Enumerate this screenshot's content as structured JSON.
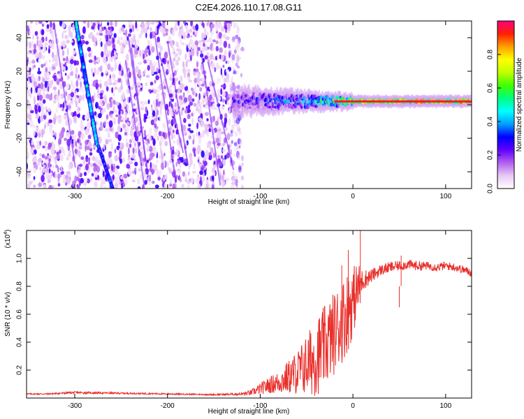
{
  "title": "C2E4.2026.110.17.08.G11",
  "chart_data": [
    {
      "type": "heatmap",
      "name": "spectrogram",
      "xlabel": "Height of straight line (km)",
      "ylabel": "Frequency (Hz)",
      "xlim": [
        -352,
        128
      ],
      "ylim": [
        -50,
        50
      ],
      "xticks": [
        -300,
        -200,
        -100,
        0,
        100
      ],
      "yticks": [
        -40,
        -20,
        0,
        20,
        40
      ],
      "colorbar": {
        "label": "Normalized spectral amplitude",
        "range": [
          0,
          1
        ],
        "ticks": [
          0.0,
          0.2,
          0.4,
          0.6,
          0.8
        ],
        "colors": [
          "#ffffff",
          "#e8c8f4",
          "#b060f0",
          "#6000ff",
          "#0000ff",
          "#00a0ff",
          "#00ffff",
          "#00ff80",
          "#40ff00",
          "#c0ff00",
          "#ffff00",
          "#ffa000",
          "#ff2000",
          "#ff0080"
        ]
      },
      "features": [
        {
          "name": "noise field",
          "x_range": [
            -352,
            -125
          ],
          "y_range": [
            -50,
            50
          ],
          "amplitude": 0.15
        },
        {
          "name": "streak A",
          "from": [
            -299,
            50
          ],
          "to": [
            -276,
            -24
          ],
          "amplitude": 0.5
        },
        {
          "name": "streak A lower",
          "from": [
            -275,
            -24
          ],
          "to": [
            -259,
            -50
          ],
          "amplitude": 0.35
        },
        {
          "name": "signal band",
          "x_range": [
            -130,
            128
          ],
          "center_hz": 2,
          "amplitude_trend": [
            [
              -130,
              0.3
            ],
            [
              -60,
              0.45
            ],
            [
              -20,
              0.7
            ],
            [
              10,
              0.85
            ],
            [
              128,
              0.92
            ]
          ]
        }
      ]
    },
    {
      "type": "line",
      "name": "snr",
      "xlabel": "Height of straight line (km)",
      "ylabel": "SNR (10 * v/v)",
      "y_multiplier": "(x10",
      "y_multiplier_exp": "4",
      "y_multiplier_close": ")",
      "xlim": [
        -352,
        128
      ],
      "ylim": [
        0,
        1.2
      ],
      "xticks": [
        -300,
        -200,
        -100,
        0,
        100
      ],
      "yticks": [
        0.2,
        0.4,
        0.6,
        0.8,
        1.0
      ],
      "color": "#e8302c",
      "series": [
        {
          "name": "SNR",
          "x": [
            -352,
            -330,
            -300,
            -250,
            -200,
            -150,
            -120,
            -110,
            -100,
            -90,
            -80,
            -70,
            -60,
            -50,
            -40,
            -30,
            -20,
            -15,
            -10,
            -5,
            0,
            5,
            10,
            20,
            30,
            40,
            50,
            60,
            70,
            80,
            90,
            100,
            110,
            120,
            128
          ],
          "y": [
            0.03,
            0.03,
            0.04,
            0.035,
            0.03,
            0.025,
            0.03,
            0.04,
            0.07,
            0.1,
            0.12,
            0.16,
            0.2,
            0.26,
            0.32,
            0.4,
            0.5,
            0.55,
            0.6,
            0.66,
            0.72,
            0.8,
            0.85,
            0.88,
            0.92,
            0.94,
            0.95,
            0.96,
            0.95,
            0.95,
            0.94,
            0.95,
            0.94,
            0.92,
            0.9
          ],
          "spread": [
            0.005,
            0.005,
            0.008,
            0.006,
            0.005,
            0.005,
            0.01,
            0.02,
            0.04,
            0.06,
            0.08,
            0.12,
            0.16,
            0.22,
            0.28,
            0.3,
            0.3,
            0.3,
            0.3,
            0.3,
            0.25,
            0.2,
            0.08,
            0.05,
            0.04,
            0.04,
            0.035,
            0.035,
            0.035,
            0.03,
            0.03,
            0.03,
            0.03,
            0.03,
            0.03
          ]
        }
      ]
    }
  ]
}
